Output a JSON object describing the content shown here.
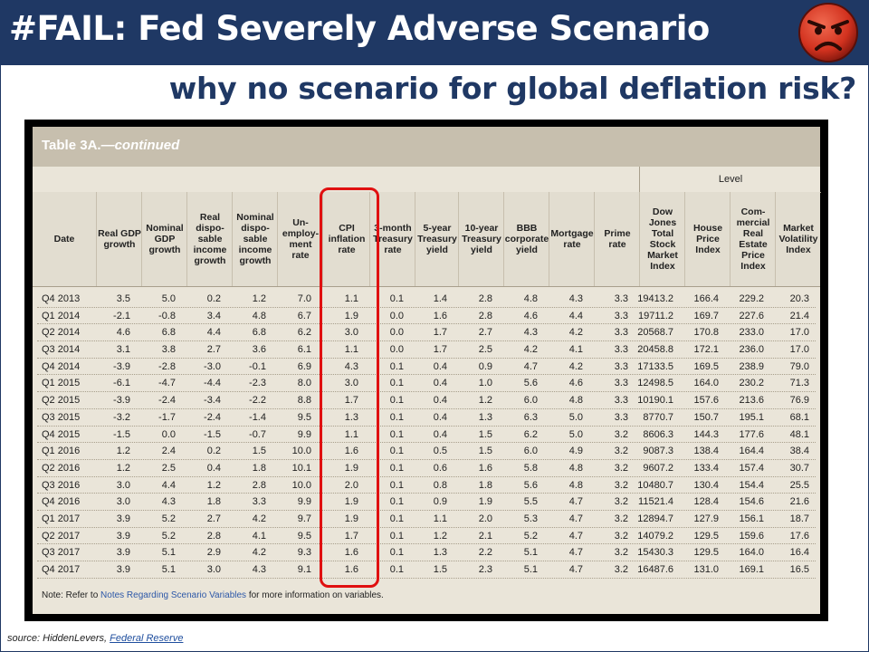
{
  "title": "#FAIL: Fed Severely Adverse Scenario",
  "subtitle": "why no scenario for global deflation risk?",
  "table": {
    "caption_main": "Table 3A.",
    "caption_cont": "—continued",
    "level_label": "Level",
    "columns": [
      "Date",
      "Real GDP\ngrowth",
      "Nominal\nGDP\ngrowth",
      "Real\ndispo-\nsable\nincome\ngrowth",
      "Nominal\ndispo-\nsable\nincome\ngrowth",
      "Un-\nemploy-\nment\nrate",
      "CPI\ninflation\nrate",
      "3-month\nTreasury\nrate",
      "5-year\nTreasury\nyield",
      "10-year\nTreasury\nyield",
      "BBB\ncorporate\nyield",
      "Mortgage\nrate",
      "Prime\nrate",
      "Dow\nJones\nTotal\nStock\nMarket\nIndex",
      "House\nPrice\nIndex",
      "Com-\nmercial\nReal\nEstate\nPrice\nIndex",
      "Market\nVolatility\nIndex"
    ],
    "rows": [
      [
        "Q4 2013",
        "3.5",
        "5.0",
        "0.2",
        "1.2",
        "7.0",
        "1.1",
        "0.1",
        "1.4",
        "2.8",
        "4.8",
        "4.3",
        "3.3",
        "19413.2",
        "166.4",
        "229.2",
        "20.3"
      ],
      [
        "Q1 2014",
        "-2.1",
        "-0.8",
        "3.4",
        "4.8",
        "6.7",
        "1.9",
        "0.0",
        "1.6",
        "2.8",
        "4.6",
        "4.4",
        "3.3",
        "19711.2",
        "169.7",
        "227.6",
        "21.4"
      ],
      [
        "Q2 2014",
        "4.6",
        "6.8",
        "4.4",
        "6.8",
        "6.2",
        "3.0",
        "0.0",
        "1.7",
        "2.7",
        "4.3",
        "4.2",
        "3.3",
        "20568.7",
        "170.8",
        "233.0",
        "17.0"
      ],
      [
        "Q3 2014",
        "3.1",
        "3.8",
        "2.7",
        "3.6",
        "6.1",
        "1.1",
        "0.0",
        "1.7",
        "2.5",
        "4.2",
        "4.1",
        "3.3",
        "20458.8",
        "172.1",
        "236.0",
        "17.0"
      ],
      [
        "Q4 2014",
        "-3.9",
        "-2.8",
        "-3.0",
        "-0.1",
        "6.9",
        "4.3",
        "0.1",
        "0.4",
        "0.9",
        "4.7",
        "4.2",
        "3.3",
        "17133.5",
        "169.5",
        "238.9",
        "79.0"
      ],
      [
        "Q1 2015",
        "-6.1",
        "-4.7",
        "-4.4",
        "-2.3",
        "8.0",
        "3.0",
        "0.1",
        "0.4",
        "1.0",
        "5.6",
        "4.6",
        "3.3",
        "12498.5",
        "164.0",
        "230.2",
        "71.3"
      ],
      [
        "Q2 2015",
        "-3.9",
        "-2.4",
        "-3.4",
        "-2.2",
        "8.8",
        "1.7",
        "0.1",
        "0.4",
        "1.2",
        "6.0",
        "4.8",
        "3.3",
        "10190.1",
        "157.6",
        "213.6",
        "76.9"
      ],
      [
        "Q3 2015",
        "-3.2",
        "-1.7",
        "-2.4",
        "-1.4",
        "9.5",
        "1.3",
        "0.1",
        "0.4",
        "1.3",
        "6.3",
        "5.0",
        "3.3",
        "8770.7",
        "150.7",
        "195.1",
        "68.1"
      ],
      [
        "Q4 2015",
        "-1.5",
        "0.0",
        "-1.5",
        "-0.7",
        "9.9",
        "1.1",
        "0.1",
        "0.4",
        "1.5",
        "6.2",
        "5.0",
        "3.2",
        "8606.3",
        "144.3",
        "177.6",
        "48.1"
      ],
      [
        "Q1 2016",
        "1.2",
        "2.4",
        "0.2",
        "1.5",
        "10.0",
        "1.6",
        "0.1",
        "0.5",
        "1.5",
        "6.0",
        "4.9",
        "3.2",
        "9087.3",
        "138.4",
        "164.4",
        "38.4"
      ],
      [
        "Q2 2016",
        "1.2",
        "2.5",
        "0.4",
        "1.8",
        "10.1",
        "1.9",
        "0.1",
        "0.6",
        "1.6",
        "5.8",
        "4.8",
        "3.2",
        "9607.2",
        "133.4",
        "157.4",
        "30.7"
      ],
      [
        "Q3 2016",
        "3.0",
        "4.4",
        "1.2",
        "2.8",
        "10.0",
        "2.0",
        "0.1",
        "0.8",
        "1.8",
        "5.6",
        "4.8",
        "3.2",
        "10480.7",
        "130.4",
        "154.4",
        "25.5"
      ],
      [
        "Q4 2016",
        "3.0",
        "4.3",
        "1.8",
        "3.3",
        "9.9",
        "1.9",
        "0.1",
        "0.9",
        "1.9",
        "5.5",
        "4.7",
        "3.2",
        "11521.4",
        "128.4",
        "154.6",
        "21.6"
      ],
      [
        "Q1 2017",
        "3.9",
        "5.2",
        "2.7",
        "4.2",
        "9.7",
        "1.9",
        "0.1",
        "1.1",
        "2.0",
        "5.3",
        "4.7",
        "3.2",
        "12894.7",
        "127.9",
        "156.1",
        "18.7"
      ],
      [
        "Q2 2017",
        "3.9",
        "5.2",
        "2.8",
        "4.1",
        "9.5",
        "1.7",
        "0.1",
        "1.2",
        "2.1",
        "5.2",
        "4.7",
        "3.2",
        "14079.2",
        "129.5",
        "159.6",
        "17.6"
      ],
      [
        "Q3 2017",
        "3.9",
        "5.1",
        "2.9",
        "4.2",
        "9.3",
        "1.6",
        "0.1",
        "1.3",
        "2.2",
        "5.1",
        "4.7",
        "3.2",
        "15430.3",
        "129.5",
        "164.0",
        "16.4"
      ],
      [
        "Q4 2017",
        "3.9",
        "5.1",
        "3.0",
        "4.3",
        "9.1",
        "1.6",
        "0.1",
        "1.5",
        "2.3",
        "5.1",
        "4.7",
        "3.2",
        "16487.6",
        "131.0",
        "169.1",
        "16.5"
      ]
    ],
    "note_prefix": "Note: Refer to ",
    "note_link": "Notes Regarding Scenario Variables",
    "note_suffix": " for more information on variables."
  },
  "source_prefix": "source: HiddenLevers, ",
  "source_link": "Federal Reserve",
  "colors": {
    "header_bg": "#1f3864",
    "highlight": "#e01010"
  },
  "icons": {
    "angry_face": "angry-face-icon"
  }
}
